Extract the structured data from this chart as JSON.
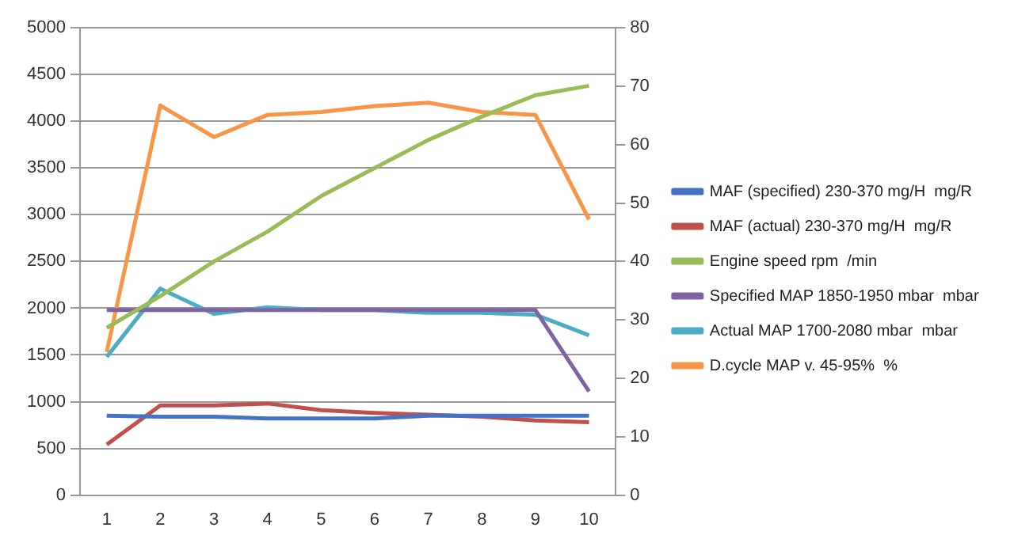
{
  "chart_data": {
    "type": "line",
    "categories": [
      "1",
      "2",
      "3",
      "4",
      "5",
      "6",
      "7",
      "8",
      "9",
      "10"
    ],
    "series": [
      {
        "name": "MAF (specified) 230-370 mg/H  mg/R",
        "color": "#4472c4",
        "values": [
          850,
          840,
          840,
          820,
          820,
          820,
          850,
          850,
          850,
          850
        ]
      },
      {
        "name": "MAF (actual) 230-370 mg/H  mg/R",
        "color": "#c0504d",
        "values": [
          540,
          960,
          960,
          980,
          910,
          880,
          860,
          840,
          800,
          780
        ]
      },
      {
        "name": "Engine speed rpm  /min",
        "color": "#9bbb59",
        "values": [
          1790,
          2130,
          2500,
          2820,
          3200,
          3500,
          3800,
          4050,
          4280,
          4380
        ]
      },
      {
        "name": "Specified MAP 1850-1950 mbar  mbar",
        "color": "#8064a2",
        "values": [
          1980,
          1980,
          1980,
          1980,
          1980,
          1980,
          1980,
          1980,
          1980,
          1110
        ]
      },
      {
        "name": "Actual MAP 1700-2080 mbar  mbar",
        "color": "#4bacc6",
        "values": [
          1480,
          2210,
          1940,
          2010,
          1980,
          1980,
          1950,
          1950,
          1930,
          1710
        ]
      },
      {
        "name": "D.cycle MAP v. 45-95%  %",
        "color": "#f79646",
        "axis": "y2",
        "values": [
          24.5,
          66.7,
          61.3,
          65.1,
          65.6,
          66.6,
          67.2,
          65.6,
          65.1,
          47.2
        ]
      }
    ],
    "ylim": [
      0,
      5000
    ],
    "yticks": [
      0,
      500,
      1000,
      1500,
      2000,
      2500,
      3000,
      3500,
      4000,
      4500,
      5000
    ],
    "y2lim": [
      0,
      80
    ],
    "y2ticks": [
      0,
      10,
      20,
      30,
      40,
      50,
      60,
      70,
      80
    ],
    "grid": "y",
    "legend": "right",
    "marker": "none",
    "line_style": "solid"
  }
}
